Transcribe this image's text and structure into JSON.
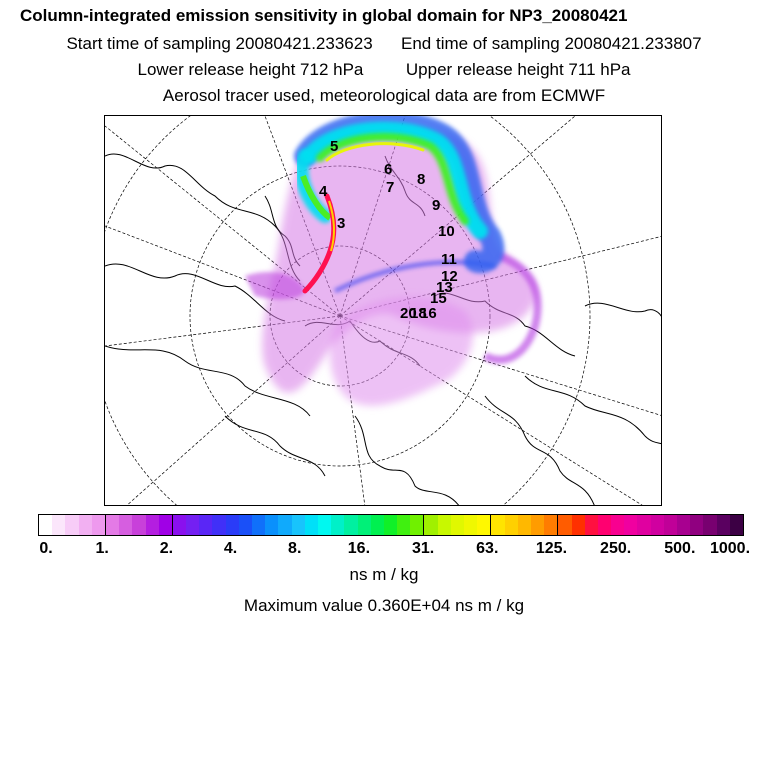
{
  "header": {
    "title": "Column-integrated emission sensitivity in global domain for NP3_20080421",
    "start_time": "Start time of sampling 20080421.233623",
    "end_time": "End time of sampling 20080421.233807",
    "lower_height": "Lower release height  712 hPa",
    "upper_height": "Upper release height  711 hPa",
    "tracer_info": "Aerosol tracer used, meteorological data are from ECMWF"
  },
  "map": {
    "projection": "north-polar-stereographic",
    "track_labels": [
      "5",
      "4",
      "3",
      "6",
      "7",
      "8",
      "9",
      "10",
      "11",
      "12",
      "13",
      "15",
      "20",
      "18",
      "16"
    ]
  },
  "colorbar": {
    "ticks": [
      "0.",
      "1.",
      "2.",
      "4.",
      "8.",
      "16.",
      "31.",
      "63.",
      "125.",
      "250.",
      "500.",
      "1000."
    ],
    "colors": [
      "#ffffff",
      "#fbe6fb",
      "#f7ccf7",
      "#f2b0f2",
      "#ee99ee",
      "#e47ae6",
      "#d65ee0",
      "#c840da",
      "#b41ee0",
      "#a000e6",
      "#8a10ee",
      "#7420f2",
      "#5a26f6",
      "#4030f8",
      "#2a3cf8",
      "#1a50f8",
      "#1070fa",
      "#0a90fc",
      "#10aafc",
      "#18c4fc",
      "#00e0f8",
      "#00f8f0",
      "#00f0c8",
      "#00f0a0",
      "#00f078",
      "#00f050",
      "#10f028",
      "#40f010",
      "#70f000",
      "#a0f000",
      "#c8f800",
      "#e0f800",
      "#f0f800",
      "#fff800",
      "#ffe400",
      "#ffd000",
      "#ffb800",
      "#ff9c00",
      "#ff7c00",
      "#ff5c00",
      "#ff3000",
      "#ff1040",
      "#ff0070",
      "#f80090",
      "#f000a0",
      "#e000a0",
      "#d000a0",
      "#c00098",
      "#a80090",
      "#900080",
      "#780070",
      "#5a0060",
      "#3c0044"
    ],
    "units": "ns m / kg"
  },
  "max_value": "Maximum value  0.360E+04 ns m / kg"
}
